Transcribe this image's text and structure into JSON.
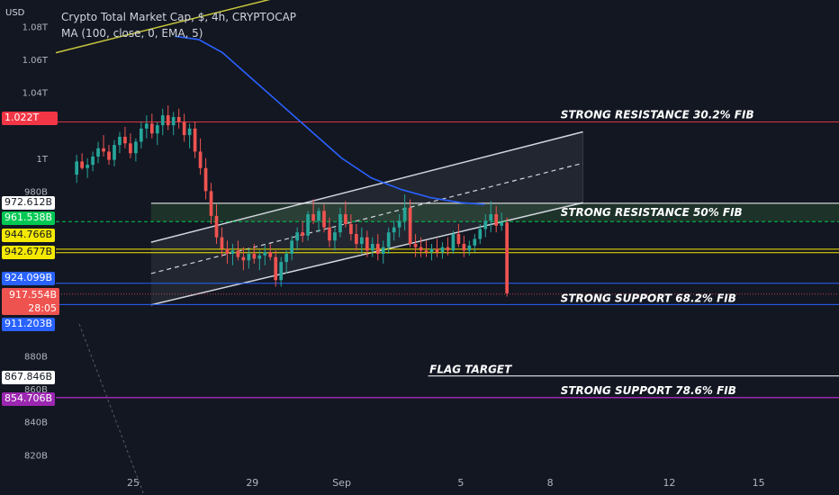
{
  "header": {
    "currency": "USD",
    "title": "Crypto Total Market Cap, $, 4h, CRYPTOCAP",
    "indicator": "MA (100, close, 0, EMA, 5)"
  },
  "price_badges": {
    "resistance_top": "1.022T",
    "b972": "972.612B",
    "b961": "961.538B",
    "b944": "944.766B",
    "b942": "942.677B",
    "b924": "924.099B",
    "current": "917.554B",
    "countdown": "28:05",
    "b911": "911.203B",
    "b867": "867.846B",
    "b854": "854.706B"
  },
  "annotations": {
    "res_30": "STRONG RESISTANCE 30.2% FIB",
    "res_50": "STRONG RESISTANCE 50% FIB",
    "sup_68": "STRONG SUPPORT 68.2% FIB",
    "flag_target": "FLAG TARGET",
    "sup_78": "STRONG SUPPORT 78.6% FIB"
  },
  "colors": {
    "background": "#131722",
    "up": "#26a69a",
    "down": "#ef5350",
    "ma": "#2962ff",
    "res_red": "#f23645",
    "res_green": "#00c853",
    "yellow": "#f5e900",
    "support_blue": "#2962ff",
    "fib_purple": "#9c27b0",
    "channel": "#d1d4dc",
    "trendline": "#c8c83a"
  },
  "chart_data": {
    "type": "candlestick",
    "title": "Crypto Total Market Cap, $, 4h, CRYPTOCAP",
    "yunit": "USD",
    "y_tick_labels": [
      "1.08T",
      "1.06T",
      "1.04T",
      "1T",
      "980B",
      "880B",
      "860B",
      "840B",
      "820B"
    ],
    "y_tick_values": [
      1080,
      1060,
      1040,
      1000,
      980,
      880,
      860,
      840,
      820
    ],
    "x_tick_labels": [
      "25",
      "29",
      "Sep",
      "5",
      "8",
      "12",
      "15"
    ],
    "x_tick_days": [
      -6,
      -2,
      1,
      5,
      8,
      12,
      15
    ],
    "ylim": [
      812,
      1096
    ],
    "xlim_days": [
      -8.6,
      17.7
    ],
    "horizontal_levels": [
      {
        "value": 1022,
        "label": "STRONG RESISTANCE 30.2% FIB",
        "color": "#f23645"
      },
      {
        "value": 972.612,
        "color": "#ffffff"
      },
      {
        "value": 961.538,
        "label": "STRONG RESISTANCE 50% FIB",
        "color": "#00c853",
        "dashed": true
      },
      {
        "value": 944.766,
        "color": "#f5e900"
      },
      {
        "value": 942.677,
        "color": "#f5e900"
      },
      {
        "value": 924.099,
        "color": "#2962ff"
      },
      {
        "value": 911.203,
        "label": "STRONG SUPPORT 68.2% FIB",
        "color": "#2962ff"
      },
      {
        "value": 867.846,
        "label": "FLAG TARGET",
        "color": "#ffffff"
      },
      {
        "value": 854.706,
        "label": "STRONG SUPPORT 78.6% FIB",
        "color": "#9c27b0"
      }
    ],
    "last_price": 917.554,
    "candles_ohlc": [
      [
        990,
        1002,
        985,
        998
      ],
      [
        998,
        1003,
        993,
        994
      ],
      [
        994,
        1000,
        988,
        996
      ],
      [
        996,
        1004,
        992,
        1001
      ],
      [
        1001,
        1010,
        997,
        1006
      ],
      [
        1006,
        1014,
        1001,
        1004
      ],
      [
        1004,
        1008,
        996,
        999
      ],
      [
        999,
        1011,
        995,
        1008
      ],
      [
        1008,
        1016,
        1003,
        1013
      ],
      [
        1013,
        1019,
        1006,
        1009
      ],
      [
        1009,
        1015,
        1000,
        1003
      ],
      [
        1003,
        1012,
        998,
        1010
      ],
      [
        1010,
        1022,
        1006,
        1018
      ],
      [
        1018,
        1026,
        1012,
        1021
      ],
      [
        1021,
        1027,
        1012,
        1015
      ],
      [
        1015,
        1022,
        1008,
        1020
      ],
      [
        1020,
        1030,
        1014,
        1026
      ],
      [
        1026,
        1032,
        1017,
        1020
      ],
      [
        1020,
        1028,
        1014,
        1025
      ],
      [
        1025,
        1030,
        1018,
        1022
      ],
      [
        1022,
        1027,
        1010,
        1014
      ],
      [
        1014,
        1021,
        1006,
        1018
      ],
      [
        1018,
        1022,
        1000,
        1004
      ],
      [
        1004,
        1012,
        990,
        994
      ],
      [
        994,
        1000,
        975,
        980
      ],
      [
        980,
        985,
        960,
        965
      ],
      [
        965,
        972,
        948,
        952
      ],
      [
        952,
        958,
        940,
        945
      ],
      [
        945,
        950,
        936,
        942
      ],
      [
        942,
        948,
        935,
        944
      ],
      [
        944,
        950,
        938,
        940
      ],
      [
        940,
        946,
        932,
        938
      ],
      [
        938,
        945,
        933,
        942
      ],
      [
        942,
        948,
        936,
        939
      ],
      [
        939,
        944,
        932,
        941
      ],
      [
        941,
        947,
        935,
        943
      ],
      [
        943,
        948,
        938,
        940
      ],
      [
        940,
        944,
        922,
        926
      ],
      [
        926,
        940,
        922,
        937
      ],
      [
        937,
        944,
        930,
        942
      ],
      [
        942,
        953,
        938,
        950
      ],
      [
        950,
        958,
        944,
        955
      ],
      [
        955,
        962,
        949,
        953
      ],
      [
        953,
        968,
        950,
        966
      ],
      [
        966,
        975,
        960,
        962
      ],
      [
        962,
        970,
        955,
        968
      ],
      [
        968,
        972,
        955,
        958
      ],
      [
        958,
        964,
        946,
        950
      ],
      [
        950,
        958,
        944,
        955
      ],
      [
        955,
        970,
        952,
        966
      ],
      [
        966,
        974,
        958,
        960
      ],
      [
        960,
        966,
        950,
        954
      ],
      [
        954,
        960,
        944,
        948
      ],
      [
        948,
        958,
        942,
        952
      ],
      [
        952,
        956,
        940,
        944
      ],
      [
        944,
        952,
        940,
        948
      ],
      [
        948,
        954,
        938,
        942
      ],
      [
        942,
        950,
        936,
        946
      ],
      [
        946,
        958,
        942,
        955
      ],
      [
        955,
        962,
        950,
        958
      ],
      [
        958,
        966,
        952,
        962
      ],
      [
        962,
        978,
        956,
        970
      ],
      [
        970,
        975,
        946,
        948
      ],
      [
        948,
        954,
        940,
        946
      ],
      [
        946,
        952,
        940,
        944
      ],
      [
        944,
        950,
        940,
        943
      ],
      [
        943,
        948,
        938,
        945
      ],
      [
        945,
        951,
        940,
        943
      ],
      [
        943,
        949,
        939,
        946
      ],
      [
        946,
        952,
        941,
        944
      ],
      [
        944,
        956,
        942,
        954
      ],
      [
        954,
        960,
        946,
        948
      ],
      [
        948,
        953,
        940,
        944
      ],
      [
        944,
        950,
        941,
        947
      ],
      [
        947,
        954,
        943,
        951
      ],
      [
        951,
        960,
        948,
        957
      ],
      [
        957,
        966,
        952,
        962
      ],
      [
        962,
        974,
        955,
        966
      ],
      [
        966,
        971,
        955,
        959
      ],
      [
        959,
        967,
        956,
        961
      ],
      [
        961,
        964,
        916,
        918
      ]
    ],
    "moving_average_ema100": [
      [
        -4.6,
        1074
      ],
      [
        -3.8,
        1072
      ],
      [
        -3.0,
        1064
      ],
      [
        -2.0,
        1048
      ],
      [
        -1.0,
        1032
      ],
      [
        0,
        1016
      ],
      [
        1.0,
        1000
      ],
      [
        2.0,
        988
      ],
      [
        3.0,
        981
      ],
      [
        4.0,
        976
      ],
      [
        5.0,
        973
      ],
      [
        5.8,
        972
      ]
    ],
    "channel": {
      "upper": [
        [
          -5.4,
          949
        ],
        [
          9.1,
          1016
        ]
      ],
      "middle": [
        [
          -5.4,
          930
        ],
        [
          9.1,
          997
        ]
      ],
      "lower": [
        [
          -5.4,
          911
        ],
        [
          9.1,
          973
        ]
      ]
    },
    "trendline": [
      [
        -8.6,
        1064
      ],
      [
        -0.6,
        1100
      ]
    ]
  }
}
